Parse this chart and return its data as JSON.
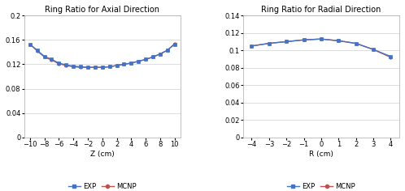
{
  "axial_title": "Ring Ratio for Axial Direction",
  "axial_xlabel": "Z (cm)",
  "axial_x": [
    -10,
    -9,
    -8,
    -7,
    -6,
    -5,
    -4,
    -3,
    -2,
    -1,
    0,
    1,
    2,
    3,
    4,
    5,
    6,
    7,
    8,
    9,
    10
  ],
  "axial_exp": [
    0.153,
    0.143,
    0.133,
    0.128,
    0.122,
    0.119,
    0.117,
    0.116,
    0.115,
    0.115,
    0.115,
    0.116,
    0.118,
    0.12,
    0.122,
    0.125,
    0.128,
    0.132,
    0.137,
    0.143,
    0.153
  ],
  "axial_mcnp": [
    0.153,
    0.142,
    0.132,
    0.127,
    0.121,
    0.118,
    0.116,
    0.115,
    0.115,
    0.115,
    0.115,
    0.116,
    0.118,
    0.12,
    0.122,
    0.125,
    0.128,
    0.132,
    0.137,
    0.143,
    0.154
  ],
  "axial_ylim": [
    0,
    0.2
  ],
  "axial_yticks": [
    0,
    0.04,
    0.08,
    0.12,
    0.16,
    0.2
  ],
  "axial_xticks": [
    -10,
    -8,
    -6,
    -4,
    -2,
    0,
    2,
    4,
    6,
    8,
    10
  ],
  "radial_title": "Ring Ratio for Radial Direction",
  "radial_xlabel": "R (cm)",
  "radial_x": [
    -4,
    -3,
    -2,
    -1,
    0,
    1,
    2,
    3,
    4
  ],
  "radial_exp": [
    0.105,
    0.108,
    0.11,
    0.112,
    0.113,
    0.111,
    0.108,
    0.101,
    0.093
  ],
  "radial_mcnp": [
    0.105,
    0.108,
    0.11,
    0.112,
    0.113,
    0.111,
    0.108,
    0.101,
    0.092
  ],
  "radial_ylim": [
    0,
    0.14
  ],
  "radial_yticks": [
    0,
    0.02,
    0.04,
    0.06,
    0.08,
    0.1,
    0.12,
    0.14
  ],
  "radial_xticks": [
    -4,
    -3,
    -2,
    -1,
    0,
    1,
    2,
    3,
    4
  ],
  "exp_color": "#4472C4",
  "mcnp_color": "#C0504D",
  "exp_marker": "s",
  "mcnp_marker": "o",
  "marker_size": 2.5,
  "line_width": 1.0,
  "legend_label_exp": "EXP",
  "legend_label_mcnp": "MCNP",
  "bg_color": "#FFFFFF",
  "plot_bg_color": "#FFFFFF",
  "grid_color": "#D0D0D0"
}
